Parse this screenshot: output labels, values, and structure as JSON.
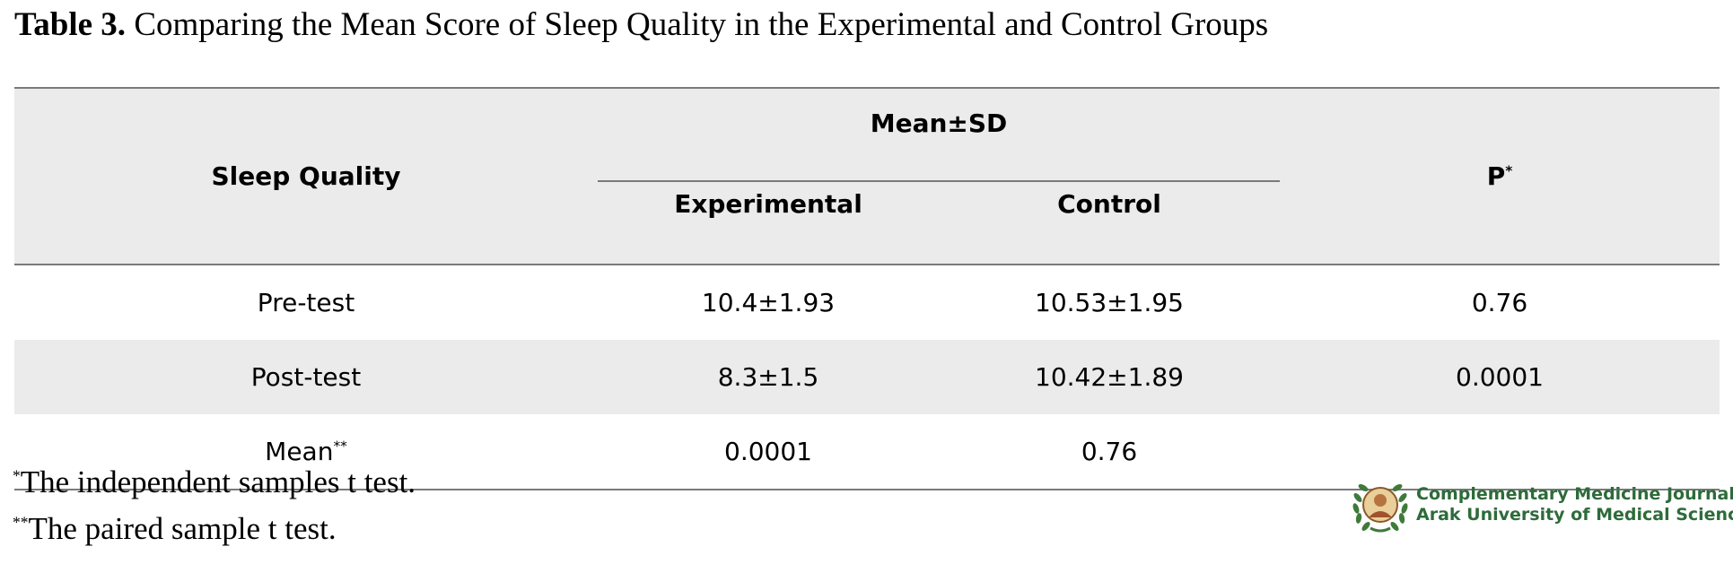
{
  "caption": {
    "label": "Table 3.",
    "text": "Comparing the Mean Score of Sleep Quality in the Experimental and Control Groups"
  },
  "table": {
    "headers": {
      "row_label": "Sleep Quality",
      "group": "Mean±SD",
      "experimental": "Experimental",
      "control": "Control",
      "p": "P",
      "p_mark": "*"
    },
    "rows": [
      {
        "label": "Pre-test",
        "label_mark": "",
        "experimental": "10.4±1.93",
        "control": "10.53±1.95",
        "p": "0.76"
      },
      {
        "label": "Post-test",
        "label_mark": "",
        "experimental": "8.3±1.5",
        "control": "10.42±1.89",
        "p": "0.0001"
      },
      {
        "label": "Mean",
        "label_mark": "**",
        "experimental": "0.0001",
        "control": "0.76",
        "p": ""
      }
    ]
  },
  "footnotes": [
    {
      "mark": "*",
      "text": "The independent samples t test."
    },
    {
      "mark": "**",
      "text": "The paired sample t test."
    }
  ],
  "journal": {
    "line1": "Complementary Medicine Journal",
    "line2": "Arak University of Medical Sciences",
    "color": "#2e6b3a"
  }
}
